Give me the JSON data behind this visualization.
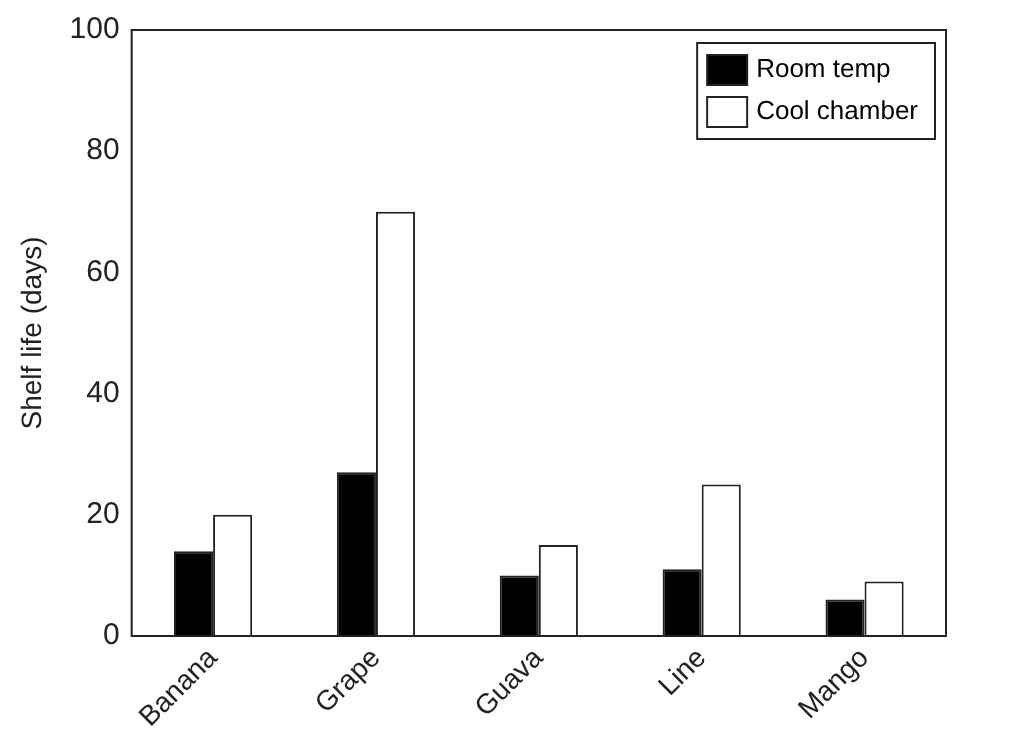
{
  "chart_data": {
    "type": "bar",
    "ylabel": "Shelf life (days)",
    "categories": [
      "Banana",
      "Grape",
      "Guava",
      "Line",
      "Mango"
    ],
    "series": [
      {
        "name": "Room temp",
        "color": "#000000",
        "values": [
          14,
          27,
          10,
          11,
          6
        ]
      },
      {
        "name": "Cool chamber",
        "color": "#ffffff",
        "values": [
          20,
          70,
          15,
          25,
          9
        ]
      }
    ],
    "ylim": [
      0,
      100
    ],
    "yticks": [
      0,
      20,
      40,
      60,
      80,
      100
    ],
    "grid": false,
    "legend": "top right"
  }
}
